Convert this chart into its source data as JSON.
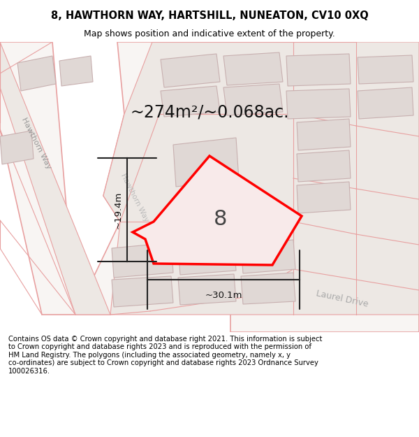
{
  "title_line1": "8, HAWTHORN WAY, HARTSHILL, NUNEATON, CV10 0XQ",
  "title_line2": "Map shows position and indicative extent of the property.",
  "footer_text": "Contains OS data © Crown copyright and database right 2021. This information is subject\nto Crown copyright and database rights 2023 and is reproduced with the permission of\nHM Land Registry. The polygons (including the associated geometry, namely x, y\nco-ordinates) are subject to Crown copyright and database rights 2023 Ordnance Survey\n100026316.",
  "area_label": "~274m²/~0.068ac.",
  "number_label": "8",
  "dim_width": "~30.1m",
  "dim_height": "~19.4m",
  "map_bg": "#ede8e4",
  "road_fill": "#f8f5f3",
  "road_stroke": "#e8a0a0",
  "building_fill": "#e0d8d5",
  "building_stroke": "#c8b0b0",
  "plot_fill": "#f8eaea",
  "plot_stroke": "#ff0000",
  "street_label_hawthorn_way_left": "Hawthorn Way",
  "street_label_hawthorn_way_diag": "Hawthorn Way",
  "street_label_laurel_drive": "Laurel Drive"
}
